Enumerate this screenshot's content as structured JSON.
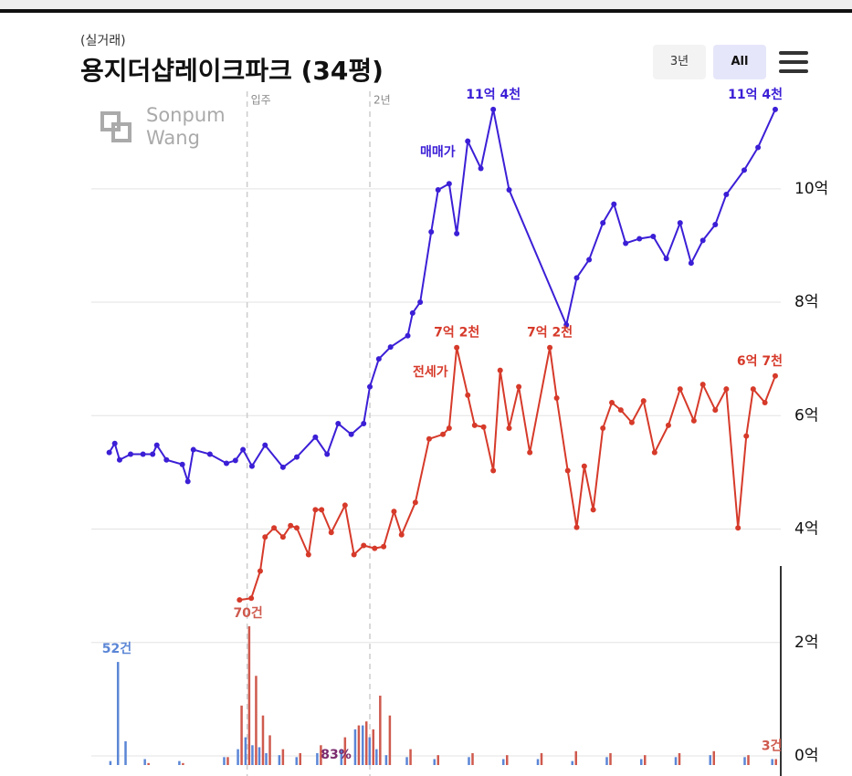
{
  "header": {
    "subtitle": "(실거래)",
    "title": "용지더샵레이크파크 (34평)",
    "buttons": [
      "3년",
      "All"
    ]
  },
  "watermark": [
    "Sonpum",
    "Wang"
  ],
  "chart_data": [
    {
      "type": "line",
      "xlim": [
        0,
        100
      ],
      "ylim": [
        0,
        11.8
      ],
      "grid": true,
      "yticks": [
        {
          "value": 0,
          "label": "0억"
        },
        {
          "value": 2,
          "label": "2억"
        },
        {
          "value": 4,
          "label": "4억"
        },
        {
          "value": 6,
          "label": "6억"
        },
        {
          "value": 8,
          "label": "8억"
        },
        {
          "value": 10,
          "label": "10억"
        }
      ],
      "markers": [
        {
          "label": "입주",
          "x": 22.6
        },
        {
          "label": "2년",
          "x": 40.4
        }
      ],
      "series": [
        {
          "name": "매매가",
          "color": "#3b1fd6",
          "x": [
            2.6,
            3.4,
            4.1,
            5.7,
            7.5,
            8.9,
            9.5,
            10.9,
            13.2,
            14.0,
            14.8,
            17.2,
            19.6,
            20.9,
            22.0,
            23.3,
            25.2,
            27.8,
            29.8,
            32.5,
            34.2,
            35.8,
            37.7,
            39.5,
            40.4,
            41.7,
            43.4,
            45.9,
            46.6,
            47.7,
            49.3,
            50.3,
            51.9,
            53.0,
            54.6,
            56.5,
            58.3,
            60.6,
            68.9,
            70.4,
            72.2,
            74.2,
            75.8,
            77.5,
            79.5,
            81.5,
            83.4,
            85.4,
            87.0,
            88.7,
            90.5,
            92.1,
            94.7,
            96.7,
            99.2
          ],
          "values": [
            5.35,
            5.51,
            5.22,
            5.32,
            5.32,
            5.32,
            5.48,
            5.22,
            5.14,
            4.84,
            5.4,
            5.32,
            5.16,
            5.21,
            5.4,
            5.11,
            5.48,
            5.09,
            5.27,
            5.62,
            5.32,
            5.86,
            5.67,
            5.86,
            6.51,
            7.0,
            7.21,
            7.41,
            7.81,
            8.0,
            9.24,
            9.98,
            10.09,
            9.21,
            10.84,
            10.36,
            11.4,
            9.98,
            7.6,
            8.43,
            8.75,
            9.4,
            9.73,
            9.04,
            9.12,
            9.16,
            8.77,
            9.4,
            8.69,
            9.09,
            9.37,
            9.9,
            10.33,
            10.73,
            11.4
          ],
          "value_labels": [
            null,
            null,
            null,
            null,
            null,
            null,
            null,
            null,
            null,
            null,
            null,
            null,
            null,
            null,
            null,
            null,
            null,
            null,
            null,
            null,
            null,
            null,
            null,
            null,
            null,
            null,
            null,
            null,
            null,
            null,
            null,
            null,
            null,
            null,
            null,
            null,
            "11억 4천",
            null,
            null,
            null,
            null,
            null,
            null,
            null,
            null,
            null,
            null,
            null,
            null,
            null,
            null,
            null,
            null,
            null,
            "11억 4천"
          ]
        },
        {
          "name": "전세가",
          "color": "#d63a2a",
          "x": [
            21.5,
            23.2,
            24.5,
            25.2,
            26.5,
            27.8,
            28.9,
            29.8,
            31.5,
            32.5,
            33.4,
            34.8,
            36.8,
            38.1,
            39.5,
            41.1,
            42.4,
            43.9,
            45.0,
            47.0,
            49.0,
            51.0,
            51.9,
            53.0,
            54.6,
            55.6,
            56.9,
            58.3,
            59.3,
            60.6,
            62.0,
            63.6,
            66.5,
            67.5,
            69.1,
            70.4,
            71.5,
            72.8,
            74.2,
            75.5,
            76.8,
            78.4,
            80.1,
            81.7,
            83.7,
            85.4,
            87.4,
            88.7,
            90.5,
            92.1,
            93.8,
            95.0,
            96.0,
            97.7,
            99.2
          ],
          "values": [
            2.75,
            2.78,
            3.26,
            3.86,
            4.02,
            3.86,
            4.06,
            4.02,
            3.55,
            4.34,
            4.34,
            3.94,
            4.42,
            3.55,
            3.71,
            3.66,
            3.69,
            4.31,
            3.9,
            4.47,
            5.59,
            5.67,
            5.78,
            7.2,
            6.36,
            5.83,
            5.8,
            5.03,
            6.8,
            5.78,
            6.51,
            5.35,
            7.2,
            6.31,
            5.03,
            4.03,
            5.11,
            4.34,
            5.78,
            6.23,
            6.1,
            5.88,
            6.26,
            5.35,
            5.83,
            6.47,
            5.91,
            6.55,
            6.1,
            6.47,
            4.02,
            5.64,
            6.47,
            6.23,
            6.7
          ],
          "value_labels": [
            null,
            null,
            null,
            null,
            null,
            null,
            null,
            null,
            null,
            null,
            null,
            null,
            null,
            null,
            null,
            null,
            null,
            null,
            null,
            null,
            null,
            null,
            null,
            "7억 2천",
            null,
            null,
            null,
            null,
            null,
            null,
            null,
            null,
            "7억 2천",
            null,
            null,
            null,
            null,
            null,
            null,
            null,
            null,
            null,
            null,
            null,
            null,
            null,
            null,
            null,
            null,
            null,
            null,
            null,
            null,
            null,
            "6억 7천"
          ]
        }
      ]
    },
    {
      "type": "bar",
      "xlim": [
        0,
        100
      ],
      "ylim": [
        0,
        70
      ],
      "x": [
        3,
        4.1,
        5.2,
        8,
        13,
        19.5,
        21.5,
        22.6,
        23.6,
        24.6,
        25.6,
        27.5,
        30,
        33,
        36.5,
        38.5,
        39.6,
        40.6,
        41.6,
        43,
        46,
        50,
        55,
        60,
        65,
        70,
        75,
        80,
        85,
        90,
        95,
        99
      ],
      "series": [
        {
          "color": "#5b86d6",
          "values": [
            2,
            52,
            12,
            3,
            2,
            4,
            8,
            14,
            10,
            9,
            6,
            5,
            4,
            6,
            8,
            18,
            20,
            14,
            8,
            5,
            4,
            3,
            4,
            3,
            3,
            2,
            4,
            3,
            4,
            5,
            4,
            3
          ],
          "value_labels": [
            null,
            "52건",
            null,
            null,
            null,
            null,
            null,
            null,
            null,
            null,
            null,
            null,
            null,
            null,
            null,
            null,
            null,
            null,
            null,
            null,
            null,
            null,
            null,
            null,
            null,
            null,
            null,
            null,
            null,
            null,
            null,
            null
          ]
        },
        {
          "color": "#cf5a4e",
          "values": [
            0,
            0,
            0,
            1,
            1,
            4,
            30,
            70,
            45,
            25,
            15,
            8,
            6,
            10,
            14,
            20,
            22,
            18,
            35,
            25,
            8,
            5,
            6,
            5,
            6,
            7,
            6,
            5,
            6,
            7,
            5,
            3
          ],
          "value_labels": [
            null,
            null,
            null,
            null,
            null,
            null,
            null,
            "70건",
            null,
            null,
            null,
            null,
            null,
            null,
            null,
            null,
            null,
            null,
            null,
            null,
            null,
            null,
            null,
            null,
            null,
            null,
            null,
            null,
            null,
            null,
            null,
            "3건"
          ]
        }
      ],
      "annotations": [
        {
          "text": "83%",
          "x": 35.5
        }
      ]
    }
  ]
}
